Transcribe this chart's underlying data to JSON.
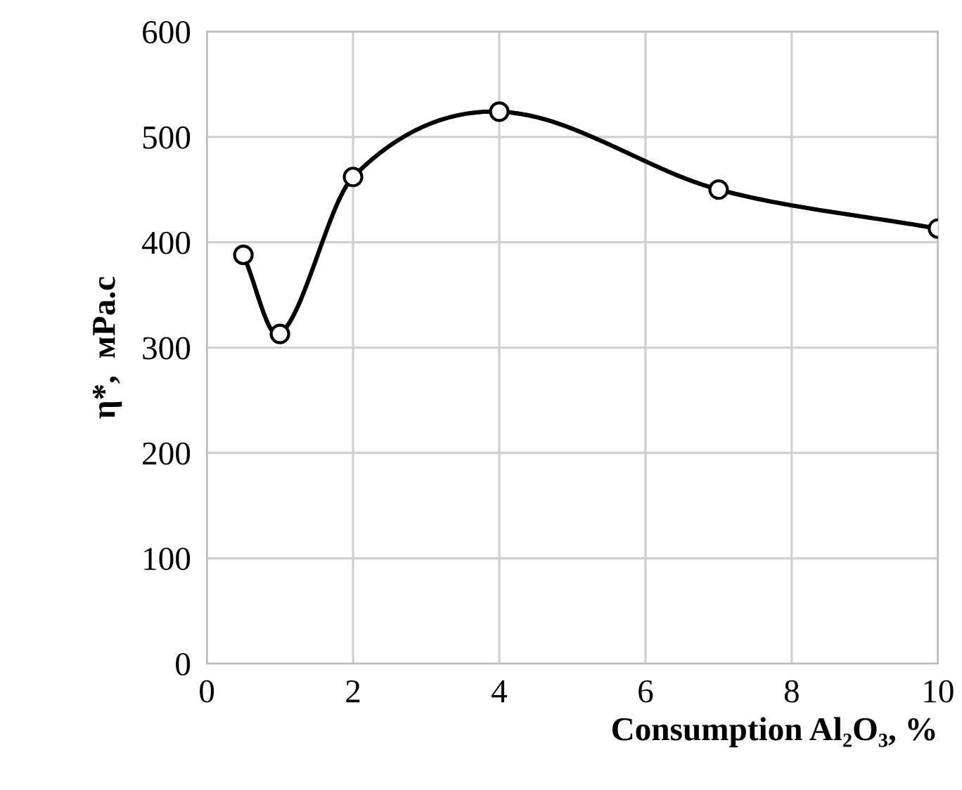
{
  "chart_data": {
    "type": "line",
    "xlabel": "Consumption Al₂O₃, %",
    "ylabel": "η*,  мPa.c",
    "x": [
      0.5,
      1,
      2,
      4,
      7,
      10
    ],
    "series": [
      {
        "color": "#000000",
        "values": [
          388,
          313,
          462,
          524,
          450,
          413
        ]
      }
    ],
    "xlim": [
      0,
      10
    ],
    "xticks": [
      0,
      2,
      4,
      6,
      8,
      10
    ],
    "ylim": [
      0,
      600
    ],
    "yticks": [
      0,
      100,
      200,
      300,
      400,
      500,
      600
    ],
    "grid": true,
    "marker": "circle",
    "line_style": "solid"
  }
}
